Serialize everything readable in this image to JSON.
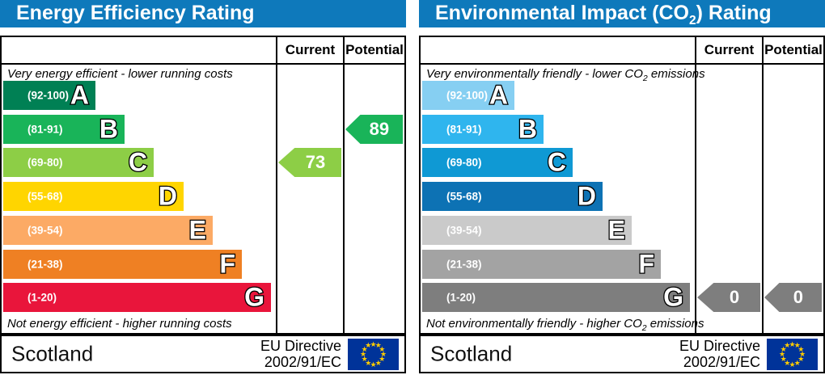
{
  "colors": {
    "header_bg": "#0e79bb",
    "border": "#000000",
    "flag_bg": "#003399",
    "flag_star": "#ffcc00"
  },
  "panels": [
    {
      "id": "energy-efficiency",
      "title": {
        "pre": "Energy Efficiency Rating",
        "sub": "",
        "post": ""
      },
      "columns": [
        "Current",
        "Potential"
      ],
      "top_caption": {
        "pre": "Very energy efficient - lower running costs",
        "sub": "",
        "post": ""
      },
      "bottom_caption": {
        "pre": "Not energy efficient - higher running costs",
        "sub": "",
        "post": ""
      },
      "bands": [
        {
          "letter": "A",
          "range": "(92-100)",
          "color": "#008054"
        },
        {
          "letter": "B",
          "range": "(81-91)",
          "color": "#19b459"
        },
        {
          "letter": "C",
          "range": "(69-80)",
          "color": "#8dce46"
        },
        {
          "letter": "D",
          "range": "(55-68)",
          "color": "#ffd500"
        },
        {
          "letter": "E",
          "range": "(39-54)",
          "color": "#fcaa65"
        },
        {
          "letter": "F",
          "range": "(21-38)",
          "color": "#ef8023"
        },
        {
          "letter": "G",
          "range": "(1-20)",
          "color": "#e9153b"
        }
      ],
      "current": {
        "value": "73",
        "band_index": 2,
        "color": "#8dce46"
      },
      "potential": {
        "value": "89",
        "band_index": 1,
        "color": "#19b459"
      },
      "footer": {
        "region": "Scotland",
        "directive": [
          "EU Directive",
          "2002/91/EC"
        ]
      }
    },
    {
      "id": "environmental-impact",
      "title": {
        "pre": "Environmental Impact (CO",
        "sub": "2",
        "post": ") Rating"
      },
      "columns": [
        "Current",
        "Potential"
      ],
      "top_caption": {
        "pre": "Very environmentally friendly - lower CO",
        "sub": "2",
        "post": " emissions"
      },
      "bottom_caption": {
        "pre": "Not environmentally friendly - higher CO",
        "sub": "2",
        "post": " emissions"
      },
      "bands": [
        {
          "letter": "A",
          "range": "(92-100)",
          "color": "#86cff2"
        },
        {
          "letter": "B",
          "range": "(81-91)",
          "color": "#2fb5ee"
        },
        {
          "letter": "C",
          "range": "(69-80)",
          "color": "#0f99d4"
        },
        {
          "letter": "D",
          "range": "(55-68)",
          "color": "#0d72b4"
        },
        {
          "letter": "E",
          "range": "(39-54)",
          "color": "#cacaca"
        },
        {
          "letter": "F",
          "range": "(21-38)",
          "color": "#a3a3a3"
        },
        {
          "letter": "G",
          "range": "(1-20)",
          "color": "#7e7e7e"
        }
      ],
      "current": {
        "value": "0",
        "band_index": 6,
        "color": "#7e7e7e"
      },
      "potential": {
        "value": "0",
        "band_index": 6,
        "color": "#7e7e7e"
      },
      "footer": {
        "region": "Scotland",
        "directive": [
          "EU Directive",
          "2002/91/EC"
        ]
      }
    }
  ],
  "chart_data": [
    {
      "type": "bar",
      "title": "Energy Efficiency Rating",
      "categories": [
        "A (92-100)",
        "B (81-91)",
        "C (69-80)",
        "D (55-68)",
        "E (39-54)",
        "F (21-38)",
        "G (1-20)"
      ],
      "series": [
        {
          "name": "Current",
          "values": [
            73
          ],
          "band": "C"
        },
        {
          "name": "Potential",
          "values": [
            89
          ],
          "band": "B"
        }
      ],
      "top_label": "Very energy efficient - lower running costs",
      "bottom_label": "Not energy efficient - higher running costs",
      "footer": "Scotland — EU Directive 2002/91/EC",
      "xlim": [
        1,
        100
      ],
      "legend_position": "top-right-columns"
    },
    {
      "type": "bar",
      "title": "Environmental Impact (CO2) Rating",
      "categories": [
        "A (92-100)",
        "B (81-91)",
        "C (69-80)",
        "D (55-68)",
        "E (39-54)",
        "F (21-38)",
        "G (1-20)"
      ],
      "series": [
        {
          "name": "Current",
          "values": [
            0
          ],
          "band": "G"
        },
        {
          "name": "Potential",
          "values": [
            0
          ],
          "band": "G"
        }
      ],
      "top_label": "Very environmentally friendly - lower CO2 emissions",
      "bottom_label": "Not environmentally friendly - higher CO2 emissions",
      "footer": "Scotland — EU Directive 2002/91/EC",
      "xlim": [
        1,
        100
      ],
      "legend_position": "top-right-columns"
    }
  ]
}
